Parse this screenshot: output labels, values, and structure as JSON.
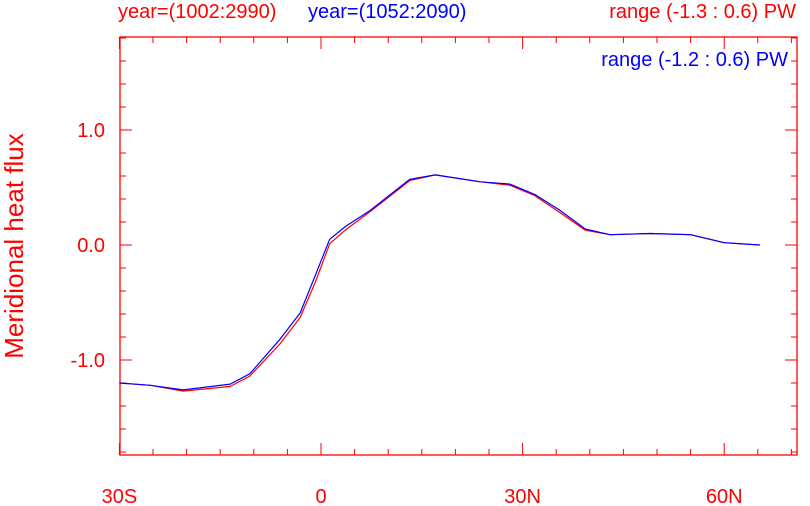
{
  "chart_data": {
    "type": "line",
    "ylabel": "Meridional heat flux",
    "xlim": [
      -30,
      70
    ],
    "ylim": [
      -1.83,
      1.81
    ],
    "xticks": [
      {
        "v": -30,
        "label": "30S"
      },
      {
        "v": 0,
        "label": "0"
      },
      {
        "v": 30,
        "label": "30N"
      },
      {
        "v": 60,
        "label": "60N"
      }
    ],
    "yticks": [
      {
        "v": 1,
        "label": "1.0"
      },
      {
        "v": 0,
        "label": "0.0"
      },
      {
        "v": -1,
        "label": "-1.0"
      }
    ],
    "top_left": [
      {
        "text": "year=(1002:2990)",
        "color": "#ff0000"
      },
      {
        "text": "year=(1052:2090)",
        "color": "#0000ff"
      }
    ],
    "top_right": [
      {
        "text": "range (-1.3 : 0.6) PW",
        "color": "#ff0000"
      },
      {
        "text": "range (-1.2 : 0.6) PW",
        "color": "#0000ff"
      }
    ],
    "series": [
      {
        "name": "red",
        "color": "#ff0000",
        "x": [
          -30,
          -25.4,
          -20.5,
          -13.5,
          -10.6,
          -6.1,
          -3.1,
          -0.9,
          1.3,
          3.6,
          7.3,
          13.2,
          17,
          23.7,
          28.1,
          31.8,
          35.6,
          39.3,
          43,
          49,
          55,
          60,
          65.3
        ],
        "y": [
          -1.2,
          -1.22,
          -1.27,
          -1.23,
          -1.14,
          -0.86,
          -0.63,
          -0.33,
          0.01,
          0.13,
          0.29,
          0.56,
          0.61,
          0.55,
          0.52,
          0.43,
          0.28,
          0.13,
          0.09,
          0.1,
          0.09,
          0.02,
          0.0
        ]
      },
      {
        "name": "blue",
        "color": "#0000ff",
        "x": [
          -30,
          -25.4,
          -20.5,
          -13.5,
          -10.6,
          -6.1,
          -3.1,
          -0.9,
          1.3,
          3.6,
          7.3,
          13.2,
          17,
          23.7,
          28.1,
          31.8,
          35.6,
          39.3,
          43,
          49,
          55,
          60,
          65.3
        ],
        "y": [
          -1.2,
          -1.22,
          -1.26,
          -1.21,
          -1.12,
          -0.82,
          -0.59,
          -0.27,
          0.05,
          0.16,
          0.3,
          0.57,
          0.61,
          0.55,
          0.53,
          0.44,
          0.3,
          0.14,
          0.09,
          0.1,
          0.09,
          0.02,
          0.0
        ]
      }
    ]
  }
}
